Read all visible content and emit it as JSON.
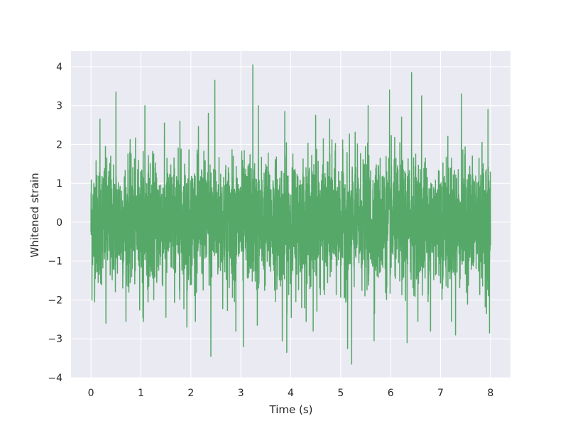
{
  "chart_data": {
    "type": "line",
    "title": "",
    "xlabel": "Time (s)",
    "ylabel": "Whitened strain",
    "xlim": [
      -0.4,
      8.4
    ],
    "ylim": [
      -4,
      4.4
    ],
    "xticks": [
      0,
      1,
      2,
      3,
      4,
      5,
      6,
      7,
      8
    ],
    "yticks": [
      -4,
      -3,
      -2,
      -1,
      0,
      1,
      2,
      3,
      4
    ],
    "xtick_labels": [
      "0",
      "1",
      "2",
      "3",
      "4",
      "5",
      "6",
      "7",
      "8"
    ],
    "ytick_labels": [
      "−4",
      "−3",
      "−2",
      "−1",
      "0",
      "1",
      "2",
      "3",
      "4"
    ],
    "grid": true,
    "background_color": "#eaeaf2",
    "grid_color": "#ffffff",
    "series": [
      {
        "color": "#55a868",
        "x_range": [
          0,
          8
        ],
        "typical_band": [
          -1.5,
          1.5
        ],
        "peaks": [
          {
            "x": 0.02,
            "y": 1.95
          },
          {
            "x": 0.18,
            "y": 2.65
          },
          {
            "x": 0.5,
            "y": 3.35
          },
          {
            "x": 1.08,
            "y": 3.0
          },
          {
            "x": 1.78,
            "y": 2.6
          },
          {
            "x": 2.35,
            "y": 2.8
          },
          {
            "x": 2.48,
            "y": 3.65
          },
          {
            "x": 3.24,
            "y": 4.05
          },
          {
            "x": 3.35,
            "y": 3.0
          },
          {
            "x": 3.88,
            "y": 2.85
          },
          {
            "x": 4.5,
            "y": 2.75
          },
          {
            "x": 4.78,
            "y": 2.65
          },
          {
            "x": 5.55,
            "y": 3.0
          },
          {
            "x": 5.98,
            "y": 3.4
          },
          {
            "x": 6.22,
            "y": 2.7
          },
          {
            "x": 6.42,
            "y": 3.85
          },
          {
            "x": 6.62,
            "y": 3.25
          },
          {
            "x": 7.42,
            "y": 3.3
          },
          {
            "x": 7.95,
            "y": 2.9
          }
        ],
        "troughs": [
          {
            "x": 0.02,
            "y": -2.0
          },
          {
            "x": 0.3,
            "y": -2.6
          },
          {
            "x": 1.04,
            "y": -2.45
          },
          {
            "x": 1.5,
            "y": -2.45
          },
          {
            "x": 1.92,
            "y": -2.7
          },
          {
            "x": 2.4,
            "y": -3.45
          },
          {
            "x": 2.9,
            "y": -2.8
          },
          {
            "x": 3.05,
            "y": -3.2
          },
          {
            "x": 3.33,
            "y": -2.65
          },
          {
            "x": 3.83,
            "y": -3.05
          },
          {
            "x": 3.92,
            "y": -3.35
          },
          {
            "x": 4.45,
            "y": -2.8
          },
          {
            "x": 5.14,
            "y": -3.25
          },
          {
            "x": 5.22,
            "y": -3.65
          },
          {
            "x": 5.67,
            "y": -3.05
          },
          {
            "x": 6.33,
            "y": -3.1
          },
          {
            "x": 6.8,
            "y": -2.8
          },
          {
            "x": 7.3,
            "y": -2.9
          },
          {
            "x": 7.98,
            "y": -2.85
          }
        ]
      }
    ]
  }
}
